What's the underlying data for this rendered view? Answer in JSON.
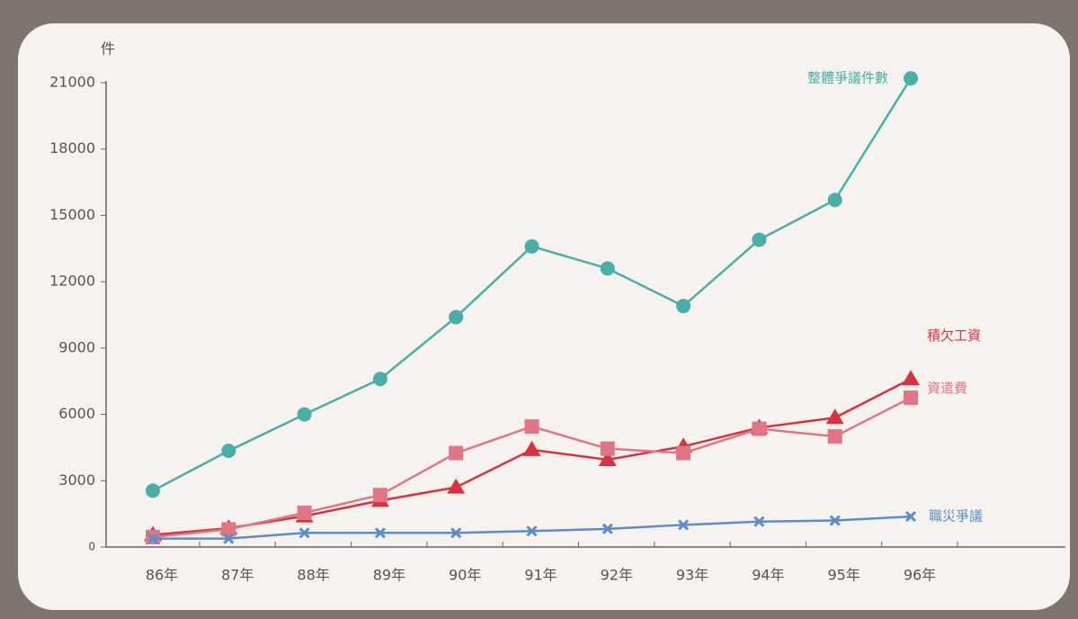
{
  "chart_data": {
    "type": "line",
    "y_unit": "件",
    "categories": [
      "86年",
      "87年",
      "88年",
      "89年",
      "90年",
      "91年",
      "92年",
      "93年",
      "94年",
      "95年",
      "96年"
    ],
    "series": [
      {
        "name": "整體爭議件數",
        "color": "#4aaea8",
        "marker": "circle",
        "values": [
          2550,
          4350,
          6000,
          7600,
          10400,
          13600,
          12600,
          10900,
          13900,
          15700,
          21200
        ]
      },
      {
        "name": "積欠工資",
        "color": "#d9313d",
        "marker": "triangle",
        "values": [
          550,
          850,
          1400,
          2100,
          2700,
          4400,
          3950,
          4550,
          5400,
          5850,
          7600
        ]
      },
      {
        "name": "資遣費",
        "color": "#e07585",
        "marker": "square",
        "values": [
          450,
          800,
          1550,
          2350,
          4250,
          5450,
          4450,
          4250,
          5350,
          5000,
          6750
        ]
      },
      {
        "name": "職災爭議",
        "color": "#5b8ccb",
        "marker": "cross",
        "values": [
          380,
          380,
          640,
          640,
          640,
          720,
          820,
          1000,
          1150,
          1200,
          1380
        ]
      }
    ],
    "ylim": [
      0,
      21000
    ],
    "yticks": [
      0,
      3000,
      6000,
      9000,
      12000,
      15000,
      18000,
      21000
    ]
  }
}
